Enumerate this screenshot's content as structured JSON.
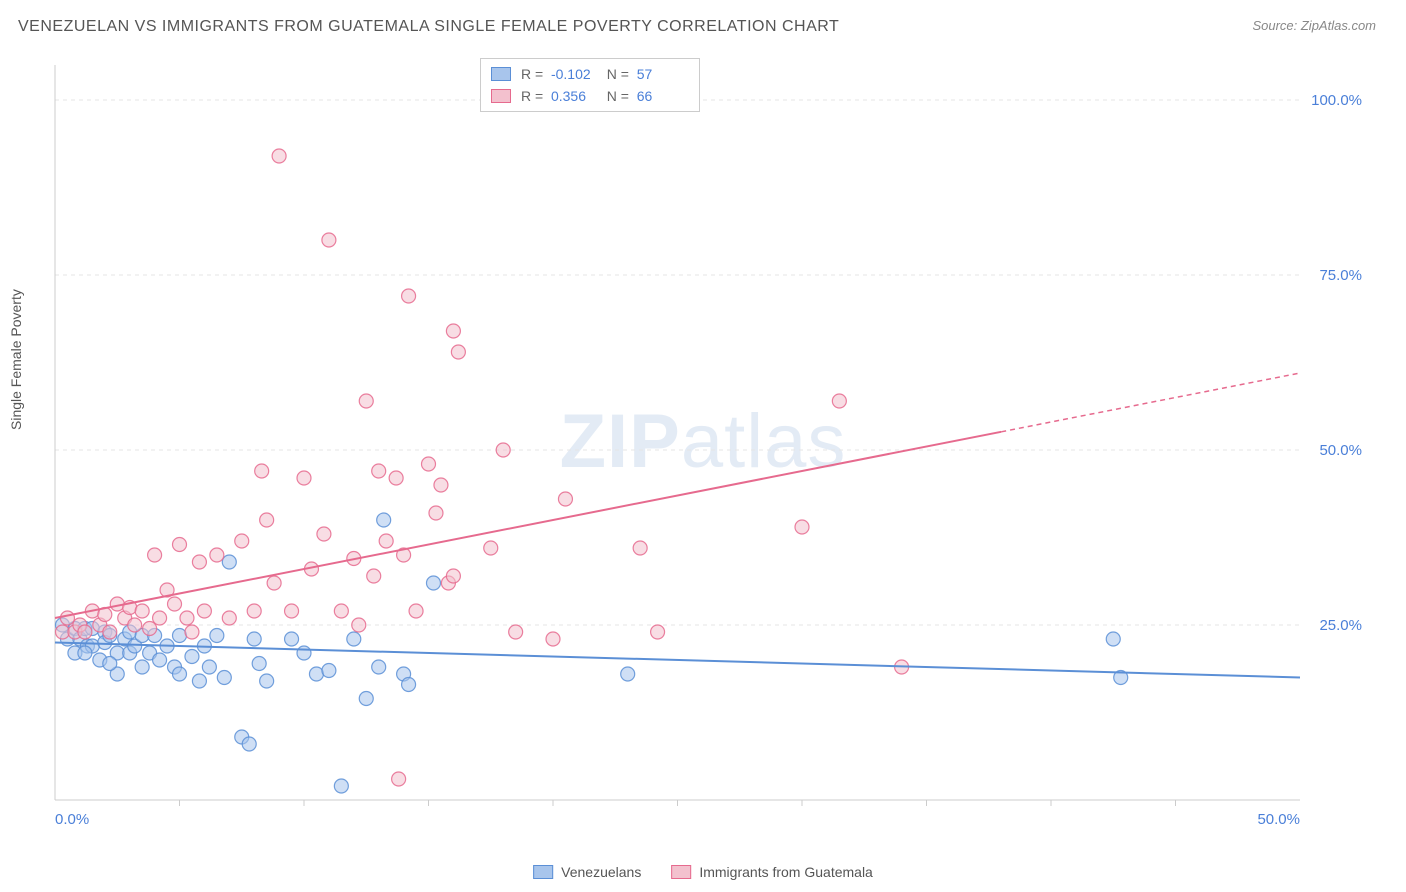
{
  "title": "VENEZUELAN VS IMMIGRANTS FROM GUATEMALA SINGLE FEMALE POVERTY CORRELATION CHART",
  "source": "Source: ZipAtlas.com",
  "ylabel": "Single Female Poverty",
  "watermark": "ZIPatlas",
  "chart": {
    "type": "scatter",
    "xlim": [
      0,
      50
    ],
    "ylim": [
      0,
      105
    ],
    "xtick_labels": [
      "0.0%",
      "50.0%"
    ],
    "xtick_positions": [
      0,
      50
    ],
    "xtick_minor": [
      5,
      10,
      15,
      20,
      25,
      30,
      35,
      40,
      45
    ],
    "ytick_labels": [
      "25.0%",
      "50.0%",
      "75.0%",
      "100.0%"
    ],
    "ytick_positions": [
      25,
      50,
      75,
      100
    ],
    "grid_color": "#e5e5e5",
    "axis_color": "#cccccc",
    "background_color": "#ffffff",
    "marker_radius": 7,
    "marker_opacity": 0.55,
    "series": [
      {
        "name": "Venezuelans",
        "color_fill": "#a8c5ec",
        "color_stroke": "#5b8fd6",
        "r_value": "-0.102",
        "n_value": "57",
        "trend": {
          "x1": 0,
          "y1": 22.5,
          "x2": 50,
          "y2": 17.5,
          "solid_until": 50
        },
        "points": [
          [
            0.3,
            25
          ],
          [
            0.5,
            23
          ],
          [
            0.8,
            24.5
          ],
          [
            0.8,
            21
          ],
          [
            1.0,
            23
          ],
          [
            1.2,
            24.5
          ],
          [
            1.3,
            22
          ],
          [
            1.5,
            24.5
          ],
          [
            1.5,
            22
          ],
          [
            1.8,
            20
          ],
          [
            2.0,
            24
          ],
          [
            2.0,
            22.5
          ],
          [
            2.2,
            23.5
          ],
          [
            2.5,
            21
          ],
          [
            2.5,
            18
          ],
          [
            2.8,
            23
          ],
          [
            3.0,
            24
          ],
          [
            3.0,
            21
          ],
          [
            3.2,
            22
          ],
          [
            3.5,
            23.5
          ],
          [
            3.5,
            19
          ],
          [
            3.8,
            21
          ],
          [
            4.0,
            23.5
          ],
          [
            4.2,
            20
          ],
          [
            4.5,
            22
          ],
          [
            4.8,
            19
          ],
          [
            5.0,
            23.5
          ],
          [
            5.0,
            18
          ],
          [
            5.5,
            20.5
          ],
          [
            5.8,
            17
          ],
          [
            6.0,
            22
          ],
          [
            6.2,
            19
          ],
          [
            6.5,
            23.5
          ],
          [
            6.8,
            17.5
          ],
          [
            7.0,
            34
          ],
          [
            7.5,
            9
          ],
          [
            7.8,
            8
          ],
          [
            8.0,
            23
          ],
          [
            8.2,
            19.5
          ],
          [
            8.5,
            17
          ],
          [
            9.5,
            23
          ],
          [
            10.0,
            21
          ],
          [
            10.5,
            18
          ],
          [
            11.0,
            18.5
          ],
          [
            11.5,
            2
          ],
          [
            12.0,
            23
          ],
          [
            12.5,
            14.5
          ],
          [
            13.0,
            19
          ],
          [
            13.2,
            40
          ],
          [
            14.0,
            18
          ],
          [
            14.2,
            16.5
          ],
          [
            15.2,
            31
          ],
          [
            23.0,
            18
          ],
          [
            42.5,
            23
          ],
          [
            42.8,
            17.5
          ],
          [
            1.2,
            21
          ],
          [
            2.2,
            19.5
          ]
        ]
      },
      {
        "name": "Immigrants from Guatemala",
        "color_fill": "#f3c1ce",
        "color_stroke": "#e66a8e",
        "r_value": "0.356",
        "n_value": "66",
        "trend": {
          "x1": 0,
          "y1": 26,
          "x2": 50,
          "y2": 61,
          "solid_until": 38
        },
        "points": [
          [
            0.3,
            24
          ],
          [
            0.5,
            26
          ],
          [
            0.8,
            24
          ],
          [
            1.0,
            25
          ],
          [
            1.2,
            24
          ],
          [
            1.5,
            27
          ],
          [
            1.8,
            25
          ],
          [
            2.0,
            26.5
          ],
          [
            2.2,
            24
          ],
          [
            2.5,
            28
          ],
          [
            2.8,
            26
          ],
          [
            3.0,
            27.5
          ],
          [
            3.2,
            25
          ],
          [
            3.5,
            27
          ],
          [
            3.8,
            24.5
          ],
          [
            4.0,
            35
          ],
          [
            4.2,
            26
          ],
          [
            4.5,
            30
          ],
          [
            4.8,
            28
          ],
          [
            5.0,
            36.5
          ],
          [
            5.3,
            26
          ],
          [
            5.5,
            24
          ],
          [
            5.8,
            34
          ],
          [
            6.0,
            27
          ],
          [
            6.5,
            35
          ],
          [
            7.0,
            26
          ],
          [
            7.5,
            37
          ],
          [
            8.0,
            27
          ],
          [
            8.3,
            47
          ],
          [
            8.8,
            31
          ],
          [
            9.0,
            92
          ],
          [
            9.5,
            27
          ],
          [
            10.0,
            46
          ],
          [
            10.3,
            33
          ],
          [
            10.8,
            38
          ],
          [
            11.0,
            80
          ],
          [
            11.5,
            27
          ],
          [
            12.0,
            34.5
          ],
          [
            12.5,
            57
          ],
          [
            12.8,
            32
          ],
          [
            13.0,
            47
          ],
          [
            13.3,
            37
          ],
          [
            13.7,
            46
          ],
          [
            13.8,
            3
          ],
          [
            14.0,
            35
          ],
          [
            14.2,
            72
          ],
          [
            14.5,
            27
          ],
          [
            15.0,
            48
          ],
          [
            15.3,
            41
          ],
          [
            15.5,
            45
          ],
          [
            15.8,
            31
          ],
          [
            16.0,
            67
          ],
          [
            16.2,
            64
          ],
          [
            16.0,
            32
          ],
          [
            17.5,
            36
          ],
          [
            18.0,
            50
          ],
          [
            18.5,
            24
          ],
          [
            20.0,
            23
          ],
          [
            20.5,
            43
          ],
          [
            23.5,
            36
          ],
          [
            24.2,
            24
          ],
          [
            30.0,
            39
          ],
          [
            31.5,
            57
          ],
          [
            34.0,
            19
          ],
          [
            8.5,
            40
          ],
          [
            12.2,
            25
          ]
        ]
      }
    ]
  },
  "legend_bottom": {
    "items": [
      {
        "label": "Venezuelans",
        "fill": "#a8c5ec",
        "stroke": "#5b8fd6"
      },
      {
        "label": "Immigrants from Guatemala",
        "fill": "#f3c1ce",
        "stroke": "#e66a8e"
      }
    ]
  }
}
